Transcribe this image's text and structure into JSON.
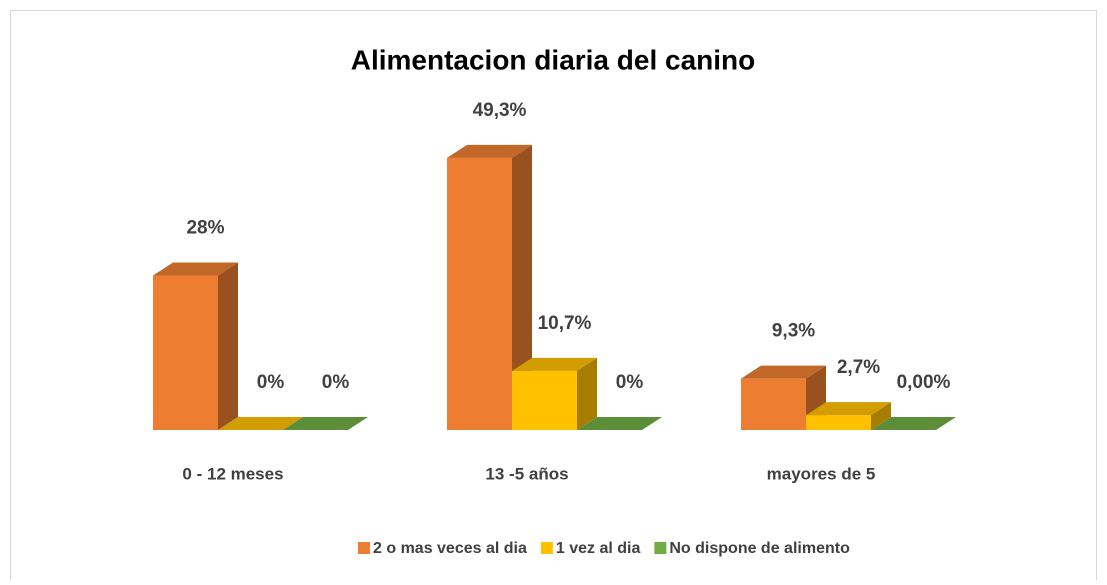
{
  "chart_data": {
    "type": "bar3d",
    "title": "Alimentacion diaria del canino",
    "categories": [
      "0 - 12 meses",
      "13 -5 años",
      "mayores de 5"
    ],
    "series": [
      {
        "name": "2 o mas veces al dia",
        "color": "#ED7D31",
        "values": [
          28,
          49.3,
          9.3
        ],
        "value_labels": [
          "28%",
          "49,3%",
          "9,3%"
        ]
      },
      {
        "name": "1 vez al dia",
        "color": "#FFC000",
        "values": [
          0,
          10.7,
          2.7
        ],
        "value_labels": [
          "0%",
          "10,7%",
          "2,7%"
        ]
      },
      {
        "name": "No dispone de alimento",
        "color": "#70AD47",
        "values": [
          0,
          0,
          0
        ],
        "value_labels": [
          "0%",
          "0%",
          "0,00%"
        ]
      }
    ]
  }
}
